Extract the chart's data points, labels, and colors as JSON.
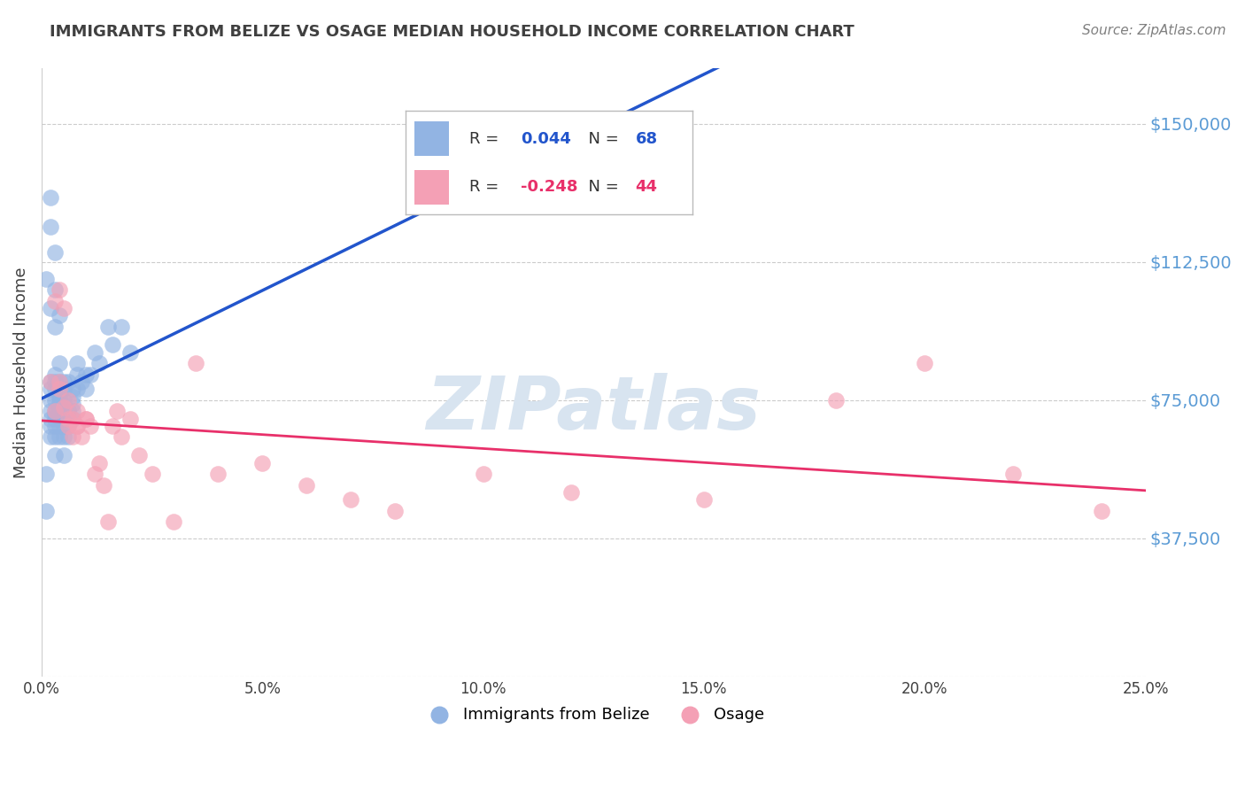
{
  "title": "IMMIGRANTS FROM BELIZE VS OSAGE MEDIAN HOUSEHOLD INCOME CORRELATION CHART",
  "source": "Source: ZipAtlas.com",
  "ylabel": "Median Household Income",
  "yticks": [
    0,
    37500,
    75000,
    112500,
    150000
  ],
  "ytick_labels": [
    "",
    "$37,500",
    "$75,000",
    "$112,500",
    "$150,000"
  ],
  "xlim": [
    0.0,
    0.25
  ],
  "ylim": [
    0,
    165000
  ],
  "legend_blue_r": "0.044",
  "legend_blue_n": "68",
  "legend_pink_r": "-0.248",
  "legend_pink_n": "44",
  "legend_label_blue": "Immigrants from Belize",
  "legend_label_pink": "Osage",
  "blue_color": "#92b4e3",
  "pink_color": "#f4a0b5",
  "blue_line_color": "#2255cc",
  "pink_line_color": "#e8306a",
  "background_color": "#ffffff",
  "grid_color": "#cccccc",
  "axis_label_color": "#5b9bd5",
  "title_color": "#404040",
  "source_color": "#808080",
  "watermark": "ZIPatlas",
  "watermark_color": "#d8e4f0",
  "blue_scatter_x": [
    0.001,
    0.001,
    0.002,
    0.002,
    0.002,
    0.002,
    0.002,
    0.002,
    0.002,
    0.002,
    0.003,
    0.003,
    0.003,
    0.003,
    0.003,
    0.003,
    0.003,
    0.003,
    0.003,
    0.003,
    0.004,
    0.004,
    0.004,
    0.004,
    0.004,
    0.004,
    0.004,
    0.004,
    0.004,
    0.004,
    0.005,
    0.005,
    0.005,
    0.005,
    0.005,
    0.005,
    0.005,
    0.006,
    0.006,
    0.006,
    0.006,
    0.006,
    0.007,
    0.007,
    0.007,
    0.007,
    0.007,
    0.008,
    0.008,
    0.008,
    0.009,
    0.01,
    0.01,
    0.011,
    0.012,
    0.013,
    0.015,
    0.016,
    0.018,
    0.02,
    0.002,
    0.002,
    0.003,
    0.003,
    0.004,
    0.005,
    0.001,
    0.003
  ],
  "blue_scatter_y": [
    108000,
    45000,
    75000,
    70000,
    68000,
    65000,
    78000,
    80000,
    72000,
    100000,
    95000,
    80000,
    75000,
    70000,
    68000,
    72000,
    78000,
    82000,
    65000,
    71000,
    85000,
    75000,
    70000,
    68000,
    72000,
    78000,
    80000,
    76000,
    65000,
    74000,
    78000,
    65000,
    70000,
    72000,
    68000,
    80000,
    75000,
    68000,
    65000,
    70000,
    72000,
    80000,
    70000,
    72000,
    74000,
    78000,
    76000,
    82000,
    85000,
    78000,
    80000,
    82000,
    78000,
    82000,
    88000,
    85000,
    95000,
    90000,
    95000,
    88000,
    130000,
    122000,
    115000,
    105000,
    98000,
    60000,
    55000,
    60000
  ],
  "pink_scatter_x": [
    0.002,
    0.003,
    0.003,
    0.004,
    0.004,
    0.005,
    0.005,
    0.006,
    0.006,
    0.007,
    0.007,
    0.008,
    0.008,
    0.009,
    0.01,
    0.011,
    0.012,
    0.013,
    0.014,
    0.015,
    0.016,
    0.017,
    0.018,
    0.02,
    0.022,
    0.025,
    0.03,
    0.035,
    0.04,
    0.05,
    0.06,
    0.07,
    0.08,
    0.1,
    0.12,
    0.15,
    0.18,
    0.2,
    0.22,
    0.24,
    0.004,
    0.006,
    0.008,
    0.01
  ],
  "pink_scatter_y": [
    80000,
    102000,
    72000,
    105000,
    78000,
    100000,
    73000,
    75000,
    68000,
    65000,
    70000,
    72000,
    68000,
    65000,
    70000,
    68000,
    55000,
    58000,
    52000,
    42000,
    68000,
    72000,
    65000,
    70000,
    60000,
    55000,
    42000,
    85000,
    55000,
    58000,
    52000,
    48000,
    45000,
    55000,
    50000,
    48000,
    75000,
    85000,
    55000,
    45000,
    80000,
    70000,
    68000,
    70000
  ]
}
